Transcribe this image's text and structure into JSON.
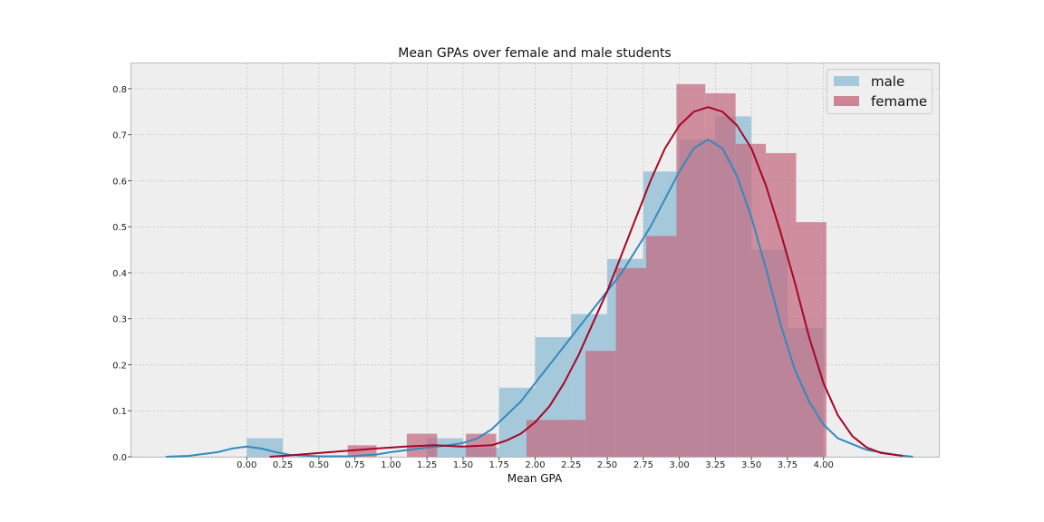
{
  "chart_data": {
    "type": "histogram+kde",
    "title": "Mean GPAs over female and male students",
    "xlabel": "Mean GPA",
    "ylabel": "",
    "xlim": [
      -0.8,
      4.8
    ],
    "ylim": [
      0,
      0.855
    ],
    "grid": true,
    "legend_position": "top-right",
    "x_ticks": [
      "0.00",
      "0.25",
      "0.50",
      "0.75",
      "1.00",
      "1.25",
      "1.50",
      "1.75",
      "2.00",
      "2.25",
      "2.50",
      "2.75",
      "3.00",
      "3.25",
      "3.50",
      "3.75",
      "4.00"
    ],
    "y_ticks": [
      "0.0",
      "0.1",
      "0.2",
      "0.3",
      "0.4",
      "0.5",
      "0.6",
      "0.7",
      "0.8"
    ],
    "colors": {
      "male_bar": "#a6c8db",
      "male_line": "#348abd",
      "female_bar": "#c46a7e",
      "female_line": "#a60628",
      "plot_bg": "#eeeeee",
      "grid": "#b0b0b0"
    },
    "series": [
      {
        "name": "male",
        "key": "male",
        "bins": [
          {
            "x0": 0.0,
            "x1": 0.25,
            "y": 0.04
          },
          {
            "x0": 1.25,
            "x1": 1.5,
            "y": 0.04
          },
          {
            "x0": 1.5,
            "x1": 1.75,
            "y": 0.02
          },
          {
            "x0": 1.75,
            "x1": 2.0,
            "y": 0.15
          },
          {
            "x0": 2.0,
            "x1": 2.25,
            "y": 0.26
          },
          {
            "x0": 2.25,
            "x1": 2.5,
            "y": 0.31
          },
          {
            "x0": 2.5,
            "x1": 2.75,
            "y": 0.43
          },
          {
            "x0": 2.75,
            "x1": 3.0,
            "y": 0.62
          },
          {
            "x0": 3.0,
            "x1": 3.25,
            "y": 0.69
          },
          {
            "x0": 3.25,
            "x1": 3.5,
            "y": 0.74
          },
          {
            "x0": 3.5,
            "x1": 3.75,
            "y": 0.45
          },
          {
            "x0": 3.75,
            "x1": 4.0,
            "y": 0.28
          }
        ],
        "kde": {
          "x": [
            -0.56,
            -0.4,
            -0.2,
            -0.1,
            0.0,
            0.1,
            0.2,
            0.3,
            0.5,
            0.7,
            0.9,
            1.0,
            1.2,
            1.4,
            1.5,
            1.6,
            1.7,
            1.8,
            1.9,
            2.0,
            2.2,
            2.4,
            2.6,
            2.8,
            3.0,
            3.1,
            3.2,
            3.3,
            3.4,
            3.5,
            3.6,
            3.7,
            3.8,
            3.9,
            4.0,
            4.1,
            4.3,
            4.5,
            4.62
          ],
          "y": [
            0.0,
            0.002,
            0.01,
            0.018,
            0.022,
            0.018,
            0.01,
            0.004,
            0.001,
            0.001,
            0.005,
            0.01,
            0.018,
            0.025,
            0.03,
            0.04,
            0.06,
            0.09,
            0.12,
            0.16,
            0.24,
            0.32,
            0.4,
            0.5,
            0.62,
            0.67,
            0.69,
            0.67,
            0.61,
            0.52,
            0.41,
            0.29,
            0.19,
            0.12,
            0.07,
            0.04,
            0.015,
            0.004,
            0.0
          ]
        }
      },
      {
        "name": "femame",
        "key": "female",
        "bins": [
          {
            "x0": 0.7,
            "x1": 0.9,
            "y": 0.025
          },
          {
            "x0": 1.11,
            "x1": 1.32,
            "y": 0.05
          },
          {
            "x0": 1.52,
            "x1": 1.73,
            "y": 0.05
          },
          {
            "x0": 1.94,
            "x1": 2.35,
            "y": 0.08
          },
          {
            "x0": 2.35,
            "x1": 2.56,
            "y": 0.23
          },
          {
            "x0": 2.56,
            "x1": 2.77,
            "y": 0.41
          },
          {
            "x0": 2.77,
            "x1": 2.98,
            "y": 0.48
          },
          {
            "x0": 2.98,
            "x1": 3.18,
            "y": 0.81
          },
          {
            "x0": 3.18,
            "x1": 3.39,
            "y": 0.79
          },
          {
            "x0": 3.39,
            "x1": 3.6,
            "y": 0.68
          },
          {
            "x0": 3.6,
            "x1": 3.81,
            "y": 0.66
          },
          {
            "x0": 3.81,
            "x1": 4.02,
            "y": 0.51
          }
        ],
        "kde": {
          "x": [
            0.16,
            0.3,
            0.5,
            0.7,
            0.9,
            1.1,
            1.3,
            1.5,
            1.7,
            1.8,
            1.9,
            2.0,
            2.1,
            2.2,
            2.3,
            2.4,
            2.5,
            2.6,
            2.7,
            2.8,
            2.9,
            3.0,
            3.1,
            3.2,
            3.3,
            3.4,
            3.5,
            3.6,
            3.7,
            3.8,
            3.9,
            4.0,
            4.1,
            4.2,
            4.3,
            4.4,
            4.55
          ],
          "y": [
            0.0,
            0.003,
            0.008,
            0.013,
            0.018,
            0.022,
            0.025,
            0.022,
            0.025,
            0.035,
            0.05,
            0.075,
            0.11,
            0.16,
            0.22,
            0.29,
            0.36,
            0.44,
            0.52,
            0.6,
            0.67,
            0.72,
            0.75,
            0.76,
            0.75,
            0.72,
            0.67,
            0.59,
            0.49,
            0.38,
            0.26,
            0.16,
            0.09,
            0.045,
            0.02,
            0.008,
            0.002
          ]
        }
      }
    ]
  }
}
